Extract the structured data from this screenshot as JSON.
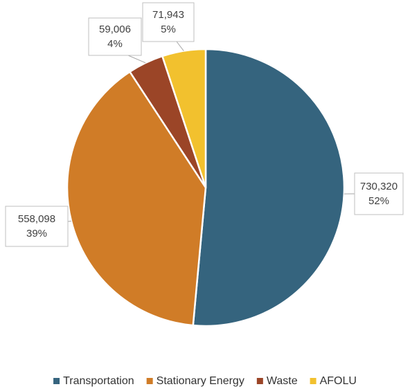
{
  "chart_data": {
    "type": "pie",
    "categories": [
      "Transportation",
      "Stationary Energy",
      "Waste",
      "AFOLU"
    ],
    "values": [
      730320,
      558098,
      59006,
      71943
    ],
    "value_labels": [
      "730,320",
      "558,098",
      "59,006",
      "71,943"
    ],
    "percent_labels": [
      "52%",
      "39%",
      "4%",
      "5%"
    ],
    "colors": [
      "#35647e",
      "#d07c27",
      "#9b4527",
      "#f2c12e"
    ],
    "legend": "bottom"
  }
}
